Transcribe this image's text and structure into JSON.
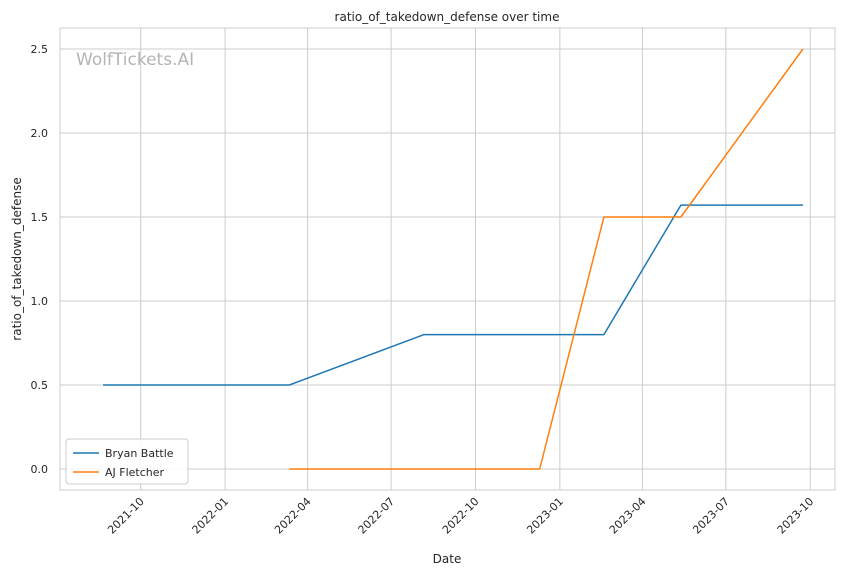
{
  "chart_data": {
    "type": "line",
    "title": "ratio_of_takedown_defense over time",
    "xlabel": "Date",
    "ylabel": "ratio_of_takedown_defense",
    "watermark": "WolfTickets.AI",
    "x_ticks": [
      "2021-10",
      "2022-01",
      "2022-04",
      "2022-07",
      "2022-10",
      "2023-01",
      "2023-04",
      "2023-07",
      "2023-10"
    ],
    "y_ticks": [
      "0.0",
      "0.5",
      "1.0",
      "1.5",
      "2.0",
      "2.5"
    ],
    "xlim": [
      "2021-07-05",
      "2023-10-28"
    ],
    "ylim": [
      -0.125,
      2.625
    ],
    "grid": true,
    "legend_position": "lower-left",
    "series": [
      {
        "name": "Bryan Battle",
        "color": "#1f77b4",
        "x": [
          "2021-08-21",
          "2022-03-12",
          "2022-08-06",
          "2023-02-18",
          "2023-05-13",
          "2023-09-23"
        ],
        "y": [
          0.5,
          0.5,
          0.8,
          0.8,
          1.571,
          1.571
        ]
      },
      {
        "name": "AJ Fletcher",
        "color": "#ff7f0e",
        "x": [
          "2022-03-12",
          "2022-12-10",
          "2023-02-18",
          "2023-05-13",
          "2023-09-23"
        ],
        "y": [
          0.0,
          0.0,
          1.5,
          1.5,
          2.5
        ]
      }
    ]
  }
}
